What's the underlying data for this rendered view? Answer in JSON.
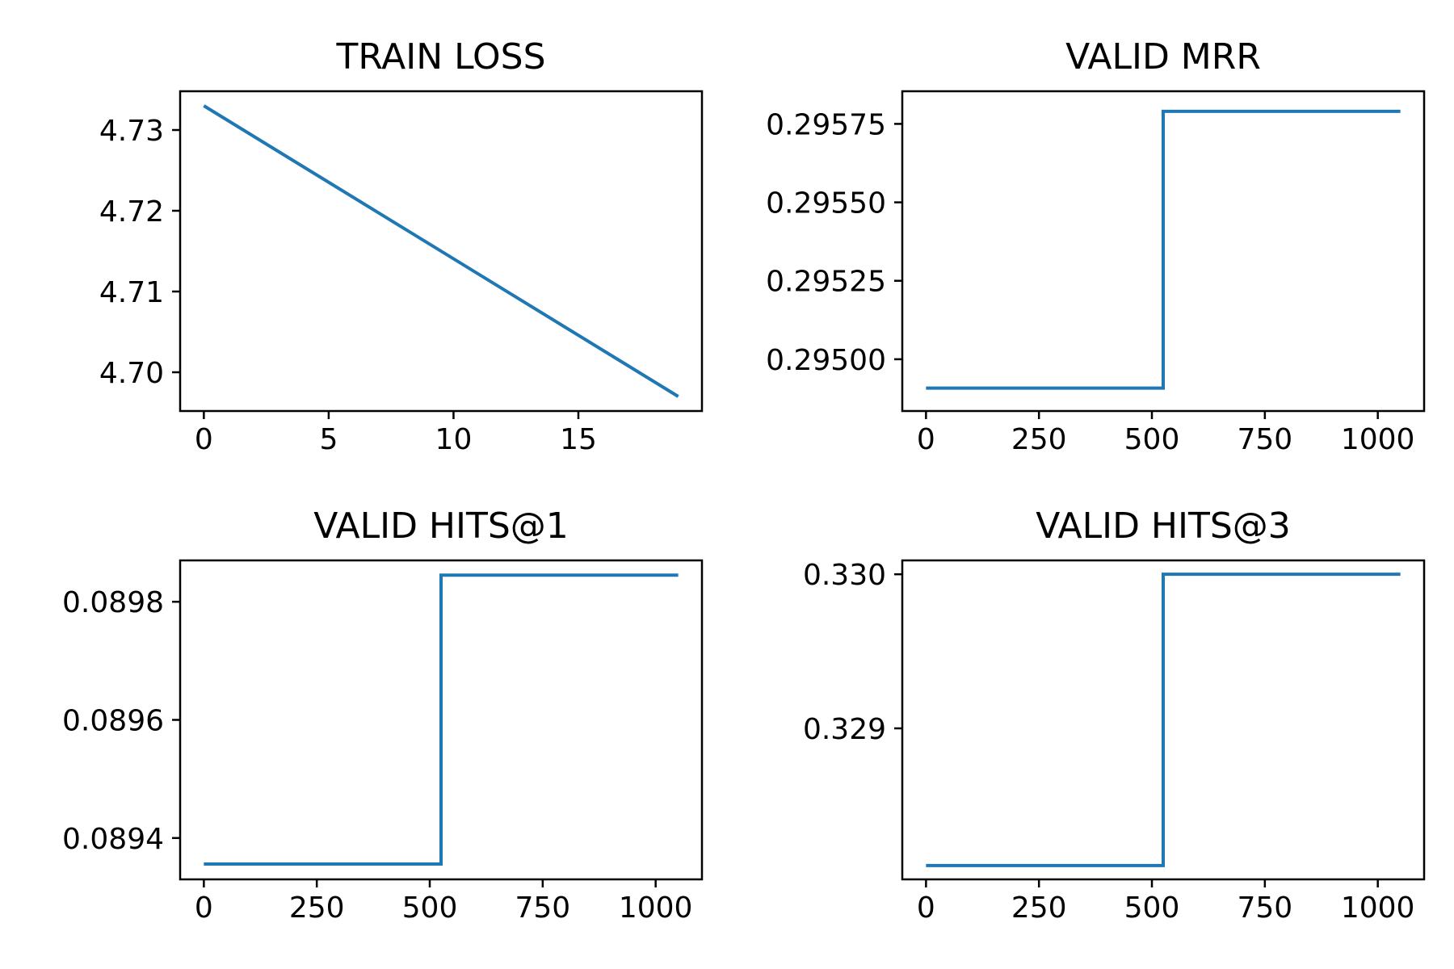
{
  "figure": {
    "line_color": "#1f77b4"
  },
  "chart_data": [
    {
      "type": "line",
      "title": "TRAIN LOSS",
      "xlabel": "",
      "ylabel": "",
      "xlim": [
        -0.95,
        19.95
      ],
      "ylim": [
        4.6952,
        4.7348
      ],
      "xticks": [
        0,
        5,
        10,
        15
      ],
      "xtick_labels": [
        "0",
        "5",
        "10",
        "15"
      ],
      "yticks": [
        4.7,
        4.71,
        4.72,
        4.73
      ],
      "ytick_labels": [
        "4.70",
        "4.71",
        "4.72",
        "4.73"
      ],
      "grid": false,
      "series": [
        {
          "x": [
            0,
            19
          ],
          "y": [
            4.733,
            4.697
          ]
        }
      ]
    },
    {
      "type": "line",
      "title": "VALID MRR",
      "xlabel": "",
      "ylabel": "",
      "xlim": [
        -52.5,
        1102.5
      ],
      "ylim": [
        29.4835,
        29.5854
      ],
      "xticks": [
        0,
        250,
        500,
        750,
        1000
      ],
      "xtick_labels": [
        "0",
        "250",
        "500",
        "750",
        "1000"
      ],
      "yticks": [
        29.5,
        29.525,
        29.55,
        29.575
      ],
      "ytick_labels": [
        "0.29500",
        "0.29525",
        "0.29550",
        "0.29575"
      ],
      "y_display_scale": 0.01,
      "grid": false,
      "series": [
        {
          "x": [
            0,
            525,
            525,
            1050
          ],
          "y": [
            29.4908,
            29.4908,
            29.579,
            29.579
          ]
        }
      ]
    },
    {
      "type": "line",
      "title": "VALID HITS@1",
      "xlabel": "",
      "ylabel": "",
      "xlim": [
        -52.5,
        1102.5
      ],
      "ylim": [
        0.08933,
        0.08987
      ],
      "xticks": [
        0,
        250,
        500,
        750,
        1000
      ],
      "xtick_labels": [
        "0",
        "250",
        "500",
        "750",
        "1000"
      ],
      "yticks": [
        0.0894,
        0.0896,
        0.0898
      ],
      "ytick_labels": [
        "0.0894",
        "0.0896",
        "0.0898"
      ],
      "grid": false,
      "series": [
        {
          "x": [
            0,
            525,
            525,
            1050
          ],
          "y": [
            0.089356,
            0.089356,
            0.089845,
            0.089845
          ]
        }
      ]
    },
    {
      "type": "line",
      "title": "VALID HITS@3",
      "xlabel": "",
      "ylabel": "",
      "xlim": [
        -52.5,
        1102.5
      ],
      "ylim": [
        0.32802,
        0.33009
      ],
      "xticks": [
        0,
        250,
        500,
        750,
        1000
      ],
      "xtick_labels": [
        "0",
        "250",
        "500",
        "750",
        "1000"
      ],
      "yticks": [
        0.329,
        0.33
      ],
      "ytick_labels": [
        "0.329",
        "0.330"
      ],
      "grid": false,
      "series": [
        {
          "x": [
            0,
            525,
            525,
            1050
          ],
          "y": [
            0.32811,
            0.32811,
            0.33,
            0.33
          ]
        }
      ]
    }
  ]
}
